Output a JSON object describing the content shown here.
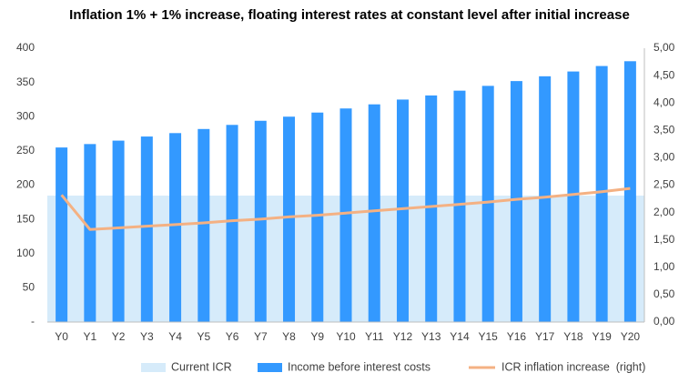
{
  "chart_data": {
    "type": "bar",
    "title": "Inflation 1% + 1% increase, floating interest rates at constant level after initial increase",
    "categories": [
      "Y0",
      "Y1",
      "Y2",
      "Y3",
      "Y4",
      "Y5",
      "Y6",
      "Y7",
      "Y8",
      "Y9",
      "Y10",
      "Y11",
      "Y12",
      "Y13",
      "Y14",
      "Y15",
      "Y16",
      "Y17",
      "Y18",
      "Y19",
      "Y20"
    ],
    "y_left": {
      "ylim": [
        0,
        400
      ],
      "tick_labels": [
        "-",
        "50",
        "100",
        "150",
        "200",
        "250",
        "300",
        "350",
        "400"
      ]
    },
    "y_right": {
      "ylim": [
        0,
        5
      ],
      "tick_labels": [
        "0,00",
        "0,50",
        "1,00",
        "1,50",
        "2,00",
        "2,50",
        "3,00",
        "3,50",
        "4,00",
        "4,50",
        "5,00"
      ]
    },
    "series": [
      {
        "name": "Current ICR",
        "type": "area",
        "axis": "right",
        "color": "#d6ebfa",
        "values": [
          2.31,
          2.31,
          2.31,
          2.31,
          2.31,
          2.31,
          2.31,
          2.31,
          2.31,
          2.31,
          2.31,
          2.31,
          2.31,
          2.31,
          2.31,
          2.31,
          2.31,
          2.31,
          2.31,
          2.31,
          2.31
        ]
      },
      {
        "name": "Income before interest costs",
        "type": "bar",
        "axis": "left",
        "color": "#3399ff",
        "values": [
          255,
          260,
          265,
          271,
          276,
          282,
          288,
          294,
          300,
          306,
          312,
          318,
          325,
          331,
          338,
          345,
          352,
          359,
          366,
          374,
          381
        ]
      },
      {
        "name": "ICR inflation increase  (right)",
        "type": "line",
        "axis": "right",
        "color": "#f4b183",
        "values": [
          2.32,
          1.69,
          1.72,
          1.75,
          1.78,
          1.81,
          1.85,
          1.88,
          1.92,
          1.95,
          1.99,
          2.03,
          2.07,
          2.11,
          2.15,
          2.19,
          2.24,
          2.28,
          2.33,
          2.38,
          2.44
        ]
      }
    ],
    "legend_position": "bottom",
    "grid": false
  }
}
